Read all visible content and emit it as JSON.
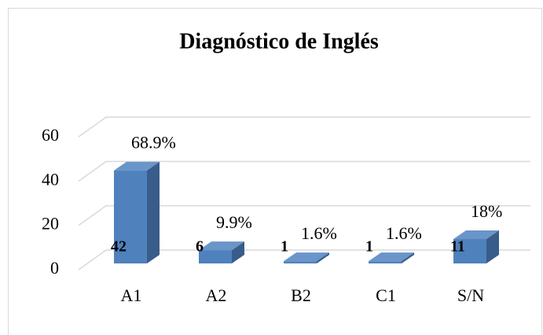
{
  "chart_data": {
    "type": "bar3d",
    "title": "Diagnóstico de Inglés",
    "categories": [
      "A1",
      "A2",
      "B2",
      "C1",
      "S/N"
    ],
    "values": [
      42,
      6,
      1,
      1,
      11
    ],
    "percent_labels": [
      "68.9%",
      "9.9%",
      "1.6%",
      "1.6%",
      "18%"
    ],
    "color": "#4f81bd",
    "ylim": [
      0,
      60
    ],
    "yticks": [
      0,
      20,
      40,
      60
    ],
    "grid": true
  }
}
